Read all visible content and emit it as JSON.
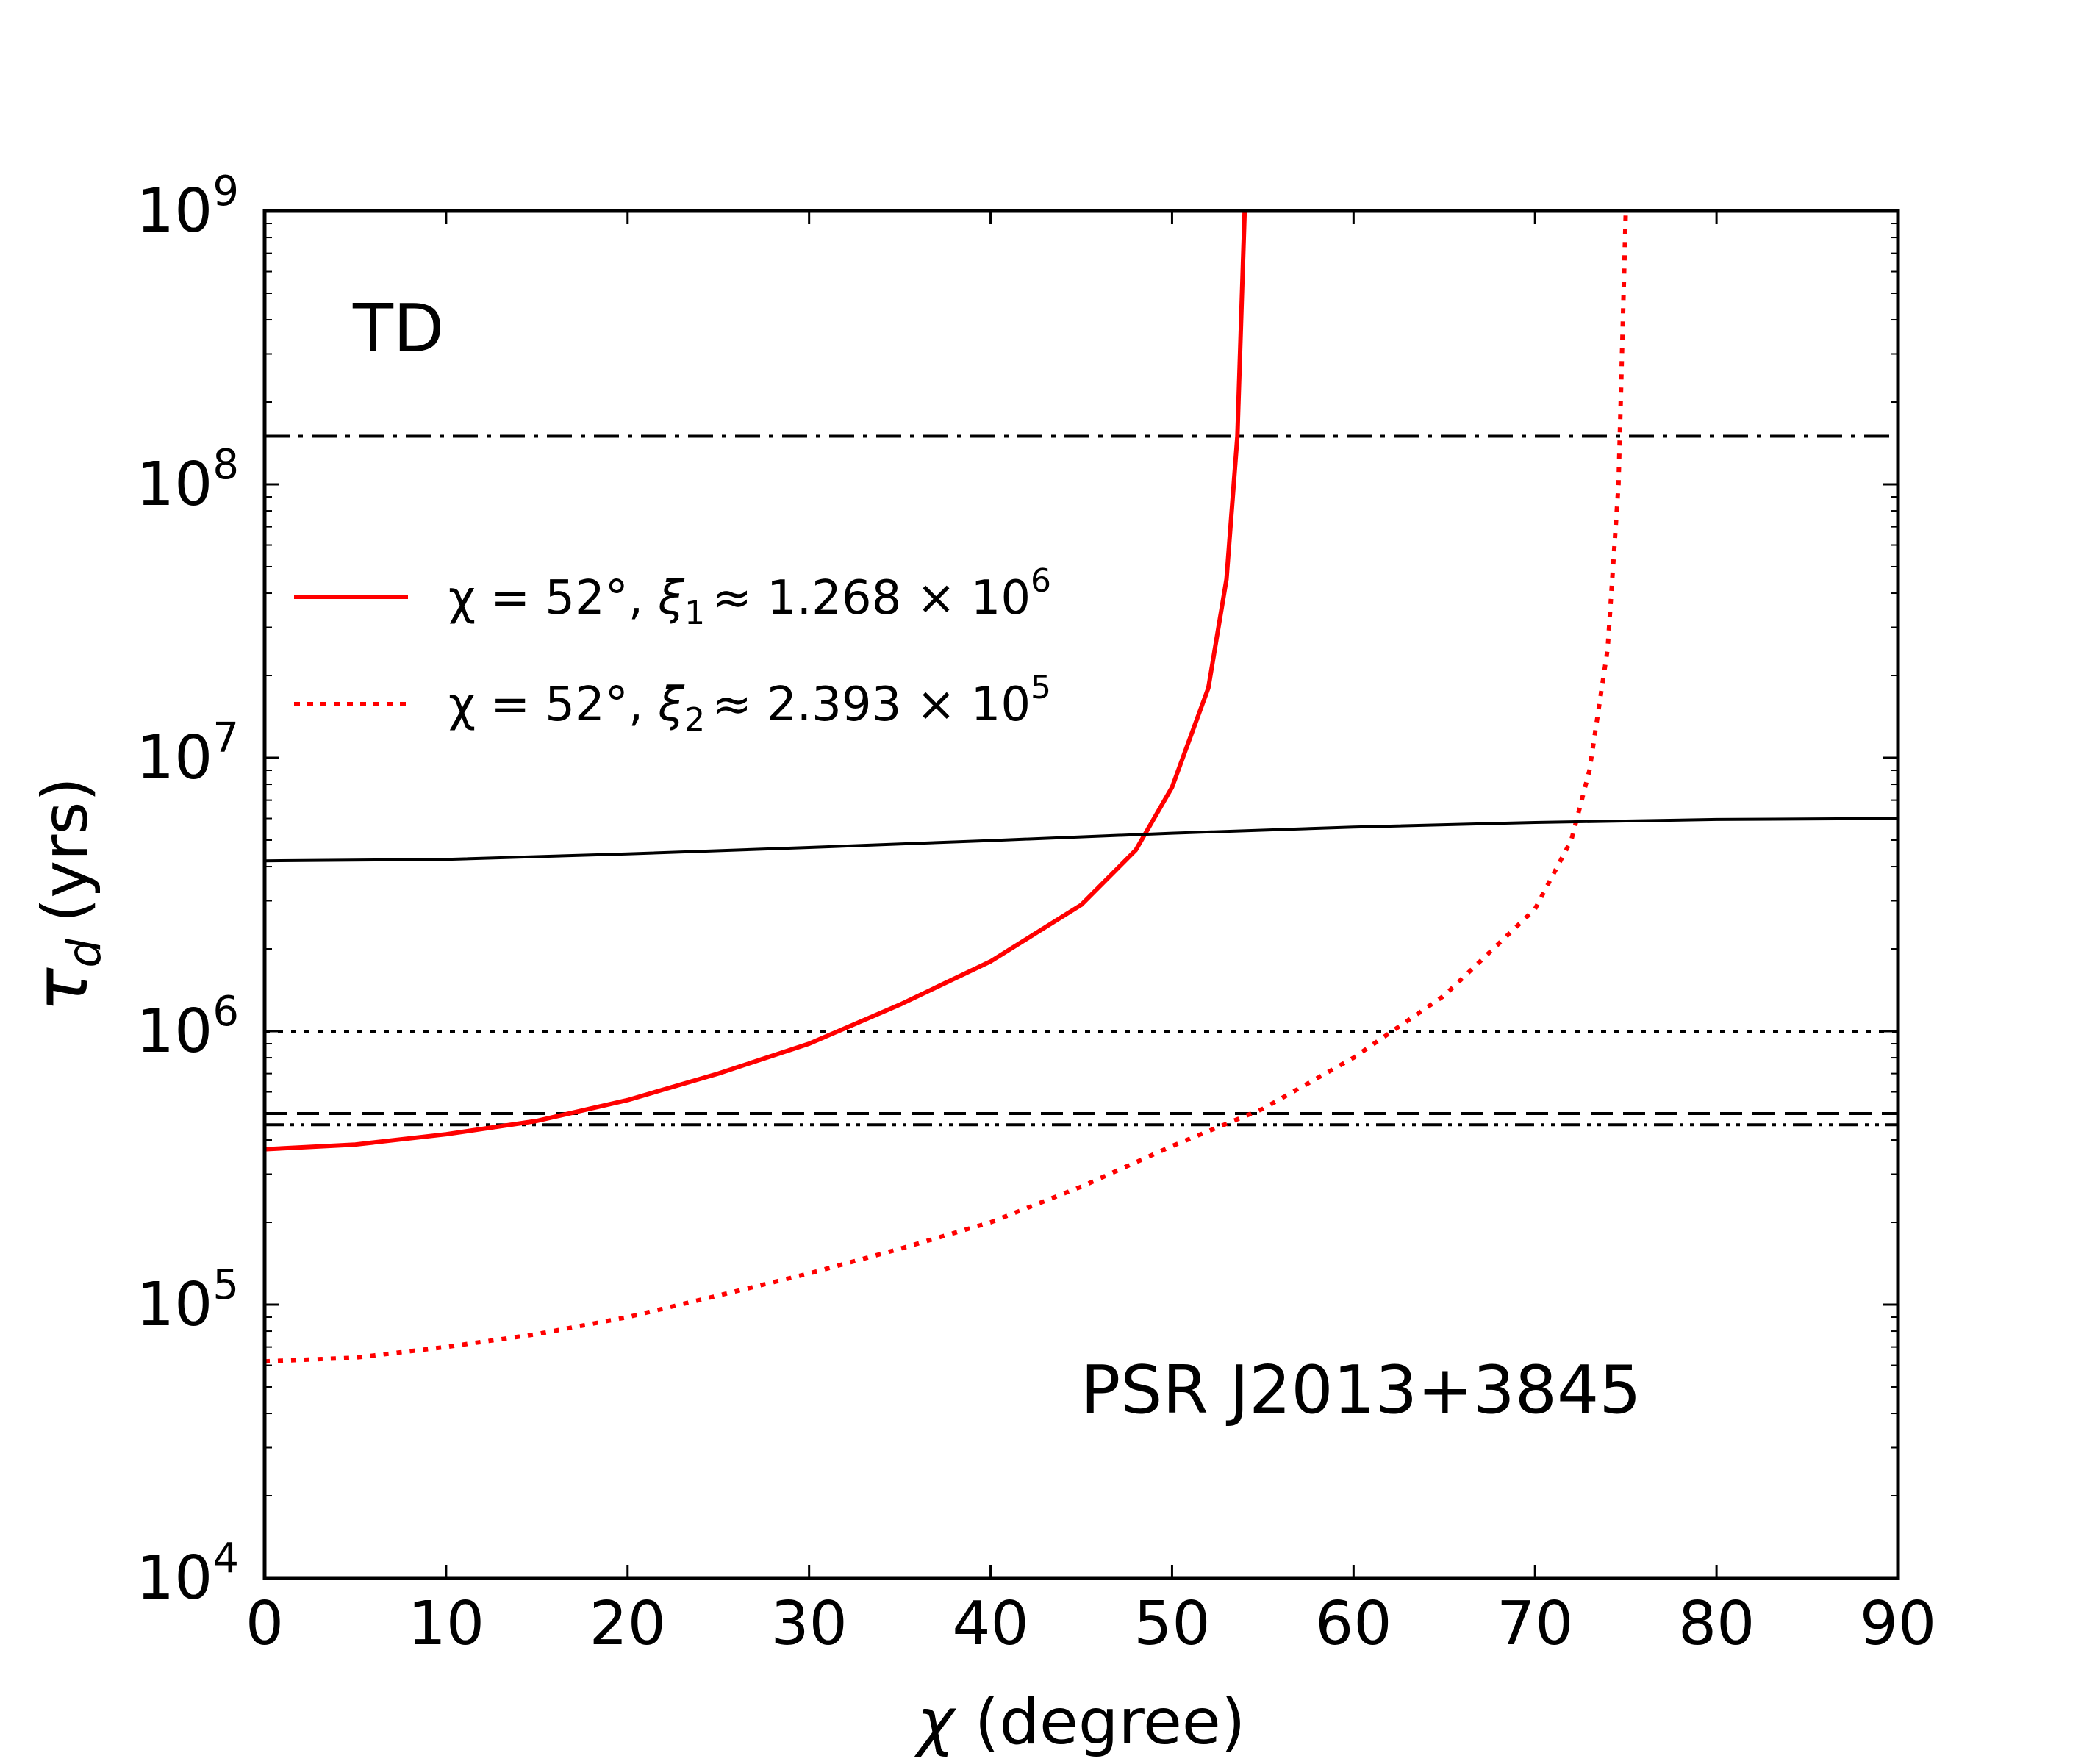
{
  "chart_data": {
    "type": "line",
    "xlabel_symbol": "χ",
    "xlabel_unit": "(degree)",
    "ylabel_symbol": "τ",
    "ylabel_sub": "d",
    "ylabel_unit": "(yrs)",
    "xlim": [
      0,
      90
    ],
    "ylim_log10": [
      4,
      9
    ],
    "yscale": "log",
    "x_ticks": [
      0,
      10,
      20,
      30,
      40,
      50,
      60,
      70,
      80,
      90
    ],
    "x_tick_labels": [
      "0",
      "10",
      "20",
      "30",
      "40",
      "50",
      "60",
      "70",
      "80",
      "90"
    ],
    "y_tick_exponents": [
      4,
      5,
      6,
      7,
      8,
      9
    ],
    "y_tick_labels": [
      {
        "base": "10",
        "exp": "4"
      },
      {
        "base": "10",
        "exp": "5"
      },
      {
        "base": "10",
        "exp": "6"
      },
      {
        "base": "10",
        "exp": "7"
      },
      {
        "base": "10",
        "exp": "8"
      },
      {
        "base": "10",
        "exp": "9"
      }
    ],
    "annotations": {
      "top_left": "TD",
      "bottom_right": "PSR J2013+3845"
    },
    "legend": {
      "placement": "upper-left",
      "entries": [
        {
          "series": "xi1",
          "chi": "χ = 52°,",
          "xi": "ξ",
          "xi_sub": "1",
          "approx": "≈ 1.268 × 10",
          "exp": "6"
        },
        {
          "series": "xi2",
          "chi": "χ = 52°,",
          "xi": "ξ",
          "xi_sub": "2",
          "approx": "≈ 2.393 × 10",
          "exp": "5"
        }
      ]
    },
    "series": [
      {
        "id": "xi1",
        "name": "χ = 52°, ξ1 ≈ 1.268 × 10^6",
        "color": "#ff0000",
        "style": "solid",
        "x": [
          0,
          5,
          10,
          15,
          20,
          25,
          30,
          35,
          40,
          45,
          48,
          50,
          52,
          53,
          53.6,
          54
        ],
        "y": [
          370000.0,
          385000.0,
          420000.0,
          470000.0,
          560000.0,
          700000.0,
          900000.0,
          1250000.0,
          1800000.0,
          2900000.0,
          4600000.0,
          7800000.0,
          18000000.0,
          45000000.0,
          150000000.0,
          1000000000.0
        ]
      },
      {
        "id": "xi2",
        "name": "χ = 52°, ξ2 ≈ 2.393 × 10^5",
        "color": "#ff0000",
        "style": "dotted",
        "x": [
          0,
          5,
          10,
          15,
          20,
          25,
          30,
          35,
          40,
          45,
          50,
          55,
          60,
          65,
          70,
          72,
          73,
          74,
          74.6,
          75
        ],
        "y": [
          62000.0,
          64000.0,
          70000.0,
          78000.0,
          90000.0,
          108000.0,
          130000.0,
          160000.0,
          200000.0,
          270000.0,
          380000.0,
          520000.0,
          800000.0,
          1350000.0,
          2800000.0,
          5000000.0,
          9000000.0,
          25000000.0,
          100000000.0,
          1000000000.0
        ]
      },
      {
        "id": "black-curve",
        "name": "",
        "color": "#000000",
        "style": "solid",
        "x": [
          0,
          10,
          20,
          30,
          40,
          50,
          60,
          70,
          80,
          90
        ],
        "y": [
          4200000.0,
          4250000.0,
          4450000.0,
          4700000.0,
          4980000.0,
          5300000.0,
          5580000.0,
          5800000.0,
          5950000.0,
          6000000.0
        ]
      }
    ],
    "hlines": [
      {
        "y": 150000000.0,
        "style": "dashdot"
      },
      {
        "y": 1000000.0,
        "style": "dotted"
      },
      {
        "y": 500000.0,
        "style": "dashed"
      },
      {
        "y": 455000.0,
        "style": "dashdotdot"
      }
    ]
  }
}
